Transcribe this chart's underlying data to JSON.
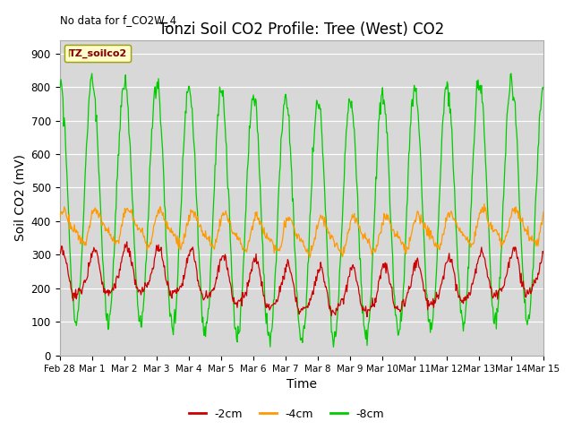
{
  "title": "Tonzi Soil CO2 Profile: Tree (West) CO2",
  "top_left_text": "No data for f_CO2W_4",
  "xlabel": "Time",
  "ylabel": "Soil CO2 (mV)",
  "ylim": [
    0,
    940
  ],
  "yticks": [
    0,
    100,
    200,
    300,
    400,
    500,
    600,
    700,
    800,
    900
  ],
  "xtick_labels": [
    "Feb 28",
    "Mar 1",
    "Mar 2",
    "Mar 3",
    "Mar 4",
    "Mar 5",
    "Mar 6",
    "Mar 7",
    "Mar 8",
    "Mar 9",
    "Mar 10",
    "Mar 11",
    "Mar 12",
    "Mar 13",
    "Mar 14",
    "Mar 15"
  ],
  "legend_label": "TZ_soilco2",
  "legend_bg": "#ffffcc",
  "legend_edge": "#999900",
  "line_2cm_color": "#cc0000",
  "line_4cm_color": "#ff9900",
  "line_8cm_color": "#00cc00",
  "fig_bg_color": "#ffffff",
  "plot_bg_color": "#d8d8d8",
  "grid_color": "#ffffff",
  "title_fontsize": 12,
  "label_fontsize": 10,
  "tick_fontsize": 8.5
}
